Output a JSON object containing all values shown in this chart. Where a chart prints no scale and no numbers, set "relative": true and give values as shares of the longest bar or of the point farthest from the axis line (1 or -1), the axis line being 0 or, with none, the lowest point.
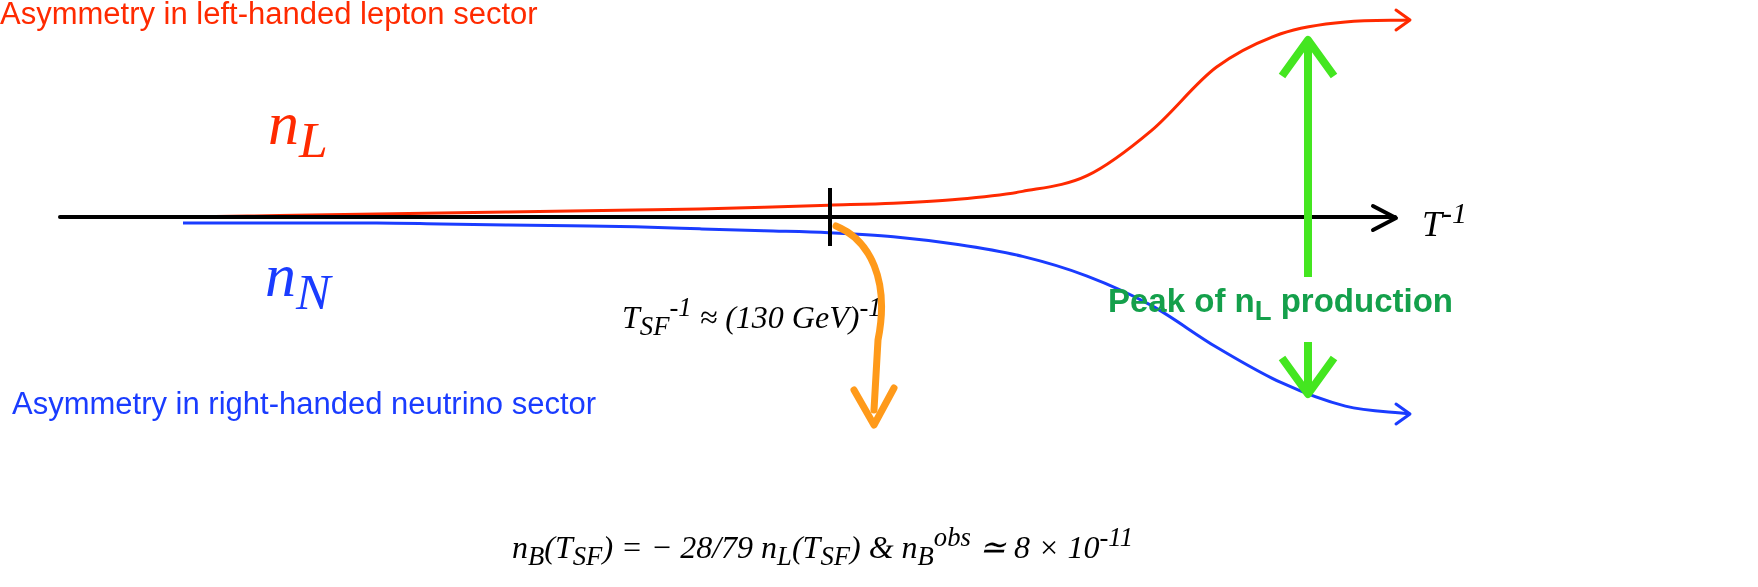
{
  "chart_data": {
    "type": "line",
    "relative": true,
    "legend": false,
    "xlabel": "T$^{-1}$",
    "categories": [
      null,
      null,
      null,
      null,
      null,
      null,
      null,
      null,
      null,
      null,
      null,
      null,
      null,
      null,
      null,
      null,
      null,
      null,
      null,
      null
    ],
    "series": [
      {
        "name": "n$_{L}$",
        "color": "#ff2a00",
        "values": [
          0,
          0.005,
          0.01,
          0.015,
          0.02,
          0.025,
          0.03,
          0.035,
          0.04,
          0.05,
          0.06,
          0.07,
          0.09,
          0.13,
          0.21,
          0.44,
          0.76,
          0.93,
          0.99,
          1
        ]
      },
      {
        "name": "n$_{N}$",
        "color": "#1a3cff",
        "values": [
          -0.03,
          -0.03,
          -0.03,
          -0.03,
          -0.035,
          -0.04,
          -0.045,
          -0.05,
          -0.06,
          -0.07,
          -0.08,
          -0.1,
          -0.14,
          -0.2,
          -0.3,
          -0.45,
          -0.66,
          -0.84,
          -0.96,
          -1
        ]
      }
    ],
    "annotations": [
      "Asymmetry in left-handed lepton sector",
      "Asymmetry in right-handed neutrino sector",
      "T$_{SF}$$^{-1}$ ≈ (130 GeV)$^{-1}$",
      "Peak of n$_{L}$ production",
      "n$_{B}$(T$_{SF}$) = − 28/79 n$_{L}$(T$_{SF}$) & n$_{B}$$^{obs}$ ≃ 8 × 10$^{-11}$"
    ]
  }
}
